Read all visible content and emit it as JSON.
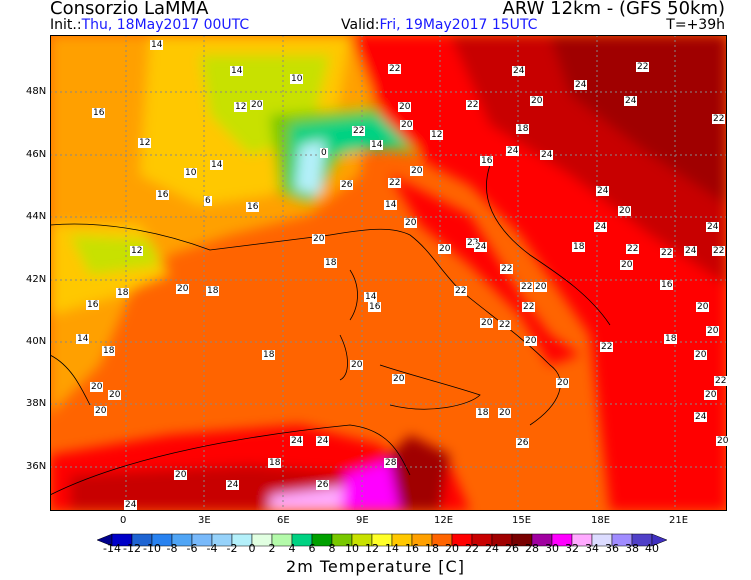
{
  "header": {
    "org": "Consorzio LaMMA",
    "model": "ARW 12km - (GFS 50km)",
    "init_label": "Init.:",
    "init_value": "Thu, 18May2017 00UTC",
    "valid_label": "Valid:",
    "valid_value": "Fri, 19May2017 15UTC",
    "lead": "T=+39h"
  },
  "map": {
    "lat_labels": [
      "48N",
      "46N",
      "44N",
      "42N",
      "40N",
      "38N",
      "36N"
    ],
    "lon_labels": [
      "0",
      "3E",
      "6E",
      "9E",
      "12E",
      "15E",
      "18E",
      "21E"
    ],
    "point_values": [
      "14",
      "14",
      "10",
      "12",
      "16",
      "22",
      "24",
      "24",
      "20",
      "24",
      "22",
      "22",
      "20",
      "20",
      "12",
      "14",
      "10",
      "20",
      "22",
      "22",
      "24",
      "18",
      "14",
      "12",
      "16",
      "6",
      "0",
      "26",
      "22",
      "20",
      "24",
      "24",
      "20",
      "16",
      "16",
      "20",
      "24",
      "22",
      "18",
      "14",
      "20",
      "20",
      "22",
      "22",
      "20",
      "18",
      "12",
      "16",
      "18",
      "20",
      "18",
      "22",
      "24",
      "22",
      "20",
      "16",
      "14",
      "18",
      "20",
      "20",
      "20",
      "18",
      "20",
      "20",
      "18",
      "20",
      "16",
      "14",
      "20",
      "22",
      "22",
      "20",
      "22",
      "20",
      "20",
      "18",
      "22",
      "24",
      "24",
      "22",
      "20",
      "20",
      "20",
      "22",
      "24",
      "20",
      "26",
      "24",
      "24",
      "26",
      "28",
      "18",
      "24",
      "20",
      "24"
    ],
    "colors": {
      "sea": "#ff6400",
      "land_warm": "#ffa000",
      "alps": "#00c878",
      "hot": "#a00000",
      "magenta": "#ff00ff"
    }
  },
  "colorbar": {
    "title": "2m Temperature [C]",
    "labels": [
      "-14",
      "-12",
      "-10",
      "-8",
      "-6",
      "-4",
      "-2",
      "0",
      "2",
      "4",
      "6",
      "8",
      "10",
      "12",
      "14",
      "16",
      "18",
      "20",
      "22",
      "24",
      "26",
      "28",
      "30",
      "32",
      "34",
      "36",
      "38",
      "40"
    ],
    "below_color": "#00008c",
    "above_color": "#4030c0",
    "colors": [
      "#0000c8",
      "#1e64d2",
      "#2882f0",
      "#50a5f5",
      "#78b9fa",
      "#96d2fa",
      "#b4f0fa",
      "#e1ffe1",
      "#b4faaa",
      "#00d282",
      "#00a000",
      "#78c800",
      "#c8e100",
      "#ffff28",
      "#ffc800",
      "#ffa000",
      "#ff6400",
      "#ff0000",
      "#c80000",
      "#a00000",
      "#780000",
      "#a000a0",
      "#ff00ff",
      "#ffaaff",
      "#dcdcff",
      "#a08cff",
      "#5040c8"
    ]
  }
}
